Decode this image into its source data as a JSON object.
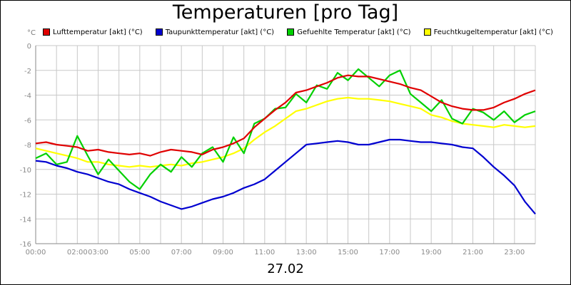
{
  "chart_data": {
    "type": "line",
    "title": "Temperaturen [pro Tag]",
    "ylabel": "°C",
    "xlabel": "27.02",
    "ylim": [
      -16,
      0
    ],
    "yticks": [
      0,
      -2,
      -4,
      -6,
      -8,
      -10,
      -12,
      -14,
      -16
    ],
    "xlim": [
      0,
      24
    ],
    "xticks": [
      {
        "hour": 0,
        "label": "00:00"
      },
      {
        "hour": 2,
        "label": "02:00"
      },
      {
        "hour": 3,
        "label": "03:00"
      },
      {
        "hour": 5,
        "label": "05:00"
      },
      {
        "hour": 7,
        "label": "07:00"
      },
      {
        "hour": 9,
        "label": "09:00"
      },
      {
        "hour": 11,
        "label": "11:00"
      },
      {
        "hour": 13,
        "label": "13:00"
      },
      {
        "hour": 15,
        "label": "15:00"
      },
      {
        "hour": 17,
        "label": "17:00"
      },
      {
        "hour": 19,
        "label": "19:00"
      },
      {
        "hour": 21,
        "label": "21:00"
      },
      {
        "hour": 23,
        "label": "23:00"
      }
    ],
    "grid": true,
    "series": [
      {
        "name": "Lufttemperatur [akt] (°C)",
        "color": "#e00000",
        "x": [
          0,
          0.5,
          1,
          1.5,
          2,
          2.5,
          3,
          3.5,
          4,
          4.5,
          5,
          5.5,
          6,
          6.5,
          7,
          7.5,
          8,
          8.5,
          9,
          9.5,
          10,
          10.5,
          11,
          11.5,
          12,
          12.5,
          13,
          13.5,
          14,
          14.5,
          15,
          15.5,
          16,
          16.5,
          17,
          17.5,
          18,
          18.5,
          19,
          19.5,
          20,
          20.5,
          21,
          21.5,
          22,
          22.5,
          23,
          23.5,
          24
        ],
        "values": [
          -7.9,
          -7.8,
          -8.0,
          -8.1,
          -8.2,
          -8.5,
          -8.4,
          -8.6,
          -8.7,
          -8.8,
          -8.7,
          -8.9,
          -8.6,
          -8.4,
          -8.5,
          -8.6,
          -8.8,
          -8.4,
          -8.2,
          -7.9,
          -7.5,
          -6.6,
          -5.9,
          -5.2,
          -4.6,
          -3.8,
          -3.6,
          -3.3,
          -3.0,
          -2.6,
          -2.4,
          -2.5,
          -2.5,
          -2.7,
          -2.9,
          -3.1,
          -3.4,
          -3.6,
          -4.1,
          -4.6,
          -4.9,
          -5.1,
          -5.2,
          -5.2,
          -5.0,
          -4.6,
          -4.3,
          -3.9,
          -3.6
        ]
      },
      {
        "name": "Taupunkttemperatur [akt] (°C)",
        "color": "#0000d0",
        "x": [
          0,
          0.5,
          1,
          1.5,
          2,
          2.5,
          3,
          3.5,
          4,
          4.5,
          5,
          5.5,
          6,
          6.5,
          7,
          7.5,
          8,
          8.5,
          9,
          9.5,
          10,
          10.5,
          11,
          11.5,
          12,
          12.5,
          13,
          13.5,
          14,
          14.5,
          15,
          15.5,
          16,
          16.5,
          17,
          17.5,
          18,
          18.5,
          19,
          19.5,
          20,
          20.5,
          21,
          21.5,
          22,
          22.5,
          23,
          23.5,
          24
        ],
        "values": [
          -9.3,
          -9.4,
          -9.7,
          -9.9,
          -10.2,
          -10.4,
          -10.7,
          -11.0,
          -11.2,
          -11.6,
          -11.9,
          -12.2,
          -12.6,
          -12.9,
          -13.2,
          -13.0,
          -12.7,
          -12.4,
          -12.2,
          -11.9,
          -11.5,
          -11.2,
          -10.8,
          -10.1,
          -9.4,
          -8.7,
          -8.0,
          -7.9,
          -7.8,
          -7.7,
          -7.8,
          -8.0,
          -8.0,
          -7.8,
          -7.6,
          -7.6,
          -7.7,
          -7.8,
          -7.8,
          -7.9,
          -8.0,
          -8.2,
          -8.3,
          -9.0,
          -9.8,
          -10.5,
          -11.3,
          -12.6,
          -13.6
        ]
      },
      {
        "name": "Gefuehlte Temperatur [akt] (°C)",
        "color": "#00d000",
        "x": [
          0,
          0.5,
          1,
          1.5,
          2,
          2.5,
          3,
          3.5,
          4,
          4.5,
          5,
          5.5,
          6,
          6.5,
          7,
          7.5,
          8,
          8.5,
          9,
          9.5,
          10,
          10.5,
          11,
          11.5,
          12,
          12.5,
          13,
          13.5,
          14,
          14.5,
          15,
          15.5,
          16,
          16.5,
          17,
          17.5,
          18,
          18.5,
          19,
          19.5,
          20,
          20.5,
          21,
          21.5,
          22,
          22.5,
          23,
          23.5,
          24
        ],
        "values": [
          -9.1,
          -8.7,
          -9.6,
          -9.4,
          -7.3,
          -8.9,
          -10.4,
          -9.2,
          -10.1,
          -11.0,
          -11.6,
          -10.4,
          -9.6,
          -10.2,
          -9.0,
          -9.8,
          -8.7,
          -8.2,
          -9.4,
          -7.4,
          -8.7,
          -6.3,
          -5.9,
          -5.1,
          -5.0,
          -3.9,
          -4.6,
          -3.2,
          -3.5,
          -2.2,
          -2.8,
          -1.9,
          -2.6,
          -3.3,
          -2.4,
          -2.0,
          -3.9,
          -4.6,
          -5.3,
          -4.4,
          -5.9,
          -6.3,
          -5.1,
          -5.4,
          -6.0,
          -5.3,
          -6.2,
          -5.6,
          -5.3
        ]
      },
      {
        "name": "Feuchtkugeltemperatur [akt] (°C)",
        "color": "#ffff00",
        "x": [
          0,
          0.5,
          1,
          1.5,
          2,
          2.5,
          3,
          3.5,
          4,
          4.5,
          5,
          5.5,
          6,
          6.5,
          7,
          7.5,
          8,
          8.5,
          9,
          9.5,
          10,
          10.5,
          11,
          11.5,
          12,
          12.5,
          13,
          13.5,
          14,
          14.5,
          15,
          15.5,
          16,
          16.5,
          17,
          17.5,
          18,
          18.5,
          19,
          19.5,
          20,
          20.5,
          21,
          21.5,
          22,
          22.5,
          23,
          23.5,
          24
        ],
        "values": [
          -8.3,
          -8.5,
          -8.7,
          -8.9,
          -9.1,
          -9.4,
          -9.4,
          -9.6,
          -9.7,
          -9.8,
          -9.7,
          -9.8,
          -9.7,
          -9.6,
          -9.7,
          -9.5,
          -9.4,
          -9.2,
          -9.0,
          -8.7,
          -8.3,
          -7.6,
          -7.0,
          -6.5,
          -5.9,
          -5.3,
          -5.1,
          -4.8,
          -4.5,
          -4.3,
          -4.2,
          -4.3,
          -4.3,
          -4.4,
          -4.5,
          -4.7,
          -4.9,
          -5.1,
          -5.6,
          -5.8,
          -6.1,
          -6.3,
          -6.4,
          -6.5,
          -6.6,
          -6.4,
          -6.5,
          -6.6,
          -6.5
        ]
      }
    ]
  }
}
